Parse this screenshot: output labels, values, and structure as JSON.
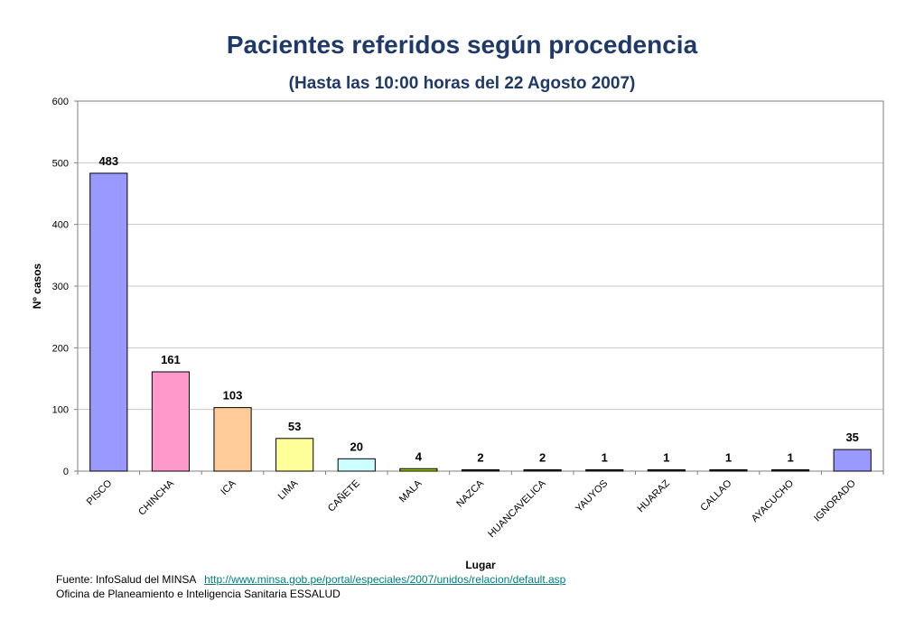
{
  "header": {
    "title": "Pacientes referidos según procedencia",
    "subtitle": "(Hasta las 10:00 horas del 22 Agosto 2007)"
  },
  "chart_data": {
    "type": "bar",
    "title": "Pacientes referidos según procedencia",
    "subtitle": "(Hasta las 10:00 horas del 22 Agosto 2007)",
    "xlabel": "Lugar",
    "ylabel": "Nº casos",
    "ylim": [
      0,
      600
    ],
    "yticks": [
      0,
      100,
      200,
      300,
      400,
      500,
      600
    ],
    "grid": true,
    "legend": false,
    "categories": [
      "PISCO",
      "CHINCHA",
      "ICA",
      "LIMA",
      "CAÑETE",
      "MALA",
      "NAZCA",
      "HUANCAVELICA",
      "YAUYOS",
      "HUARAZ",
      "CALLAO",
      "AYACUCHO",
      "IGNORADO"
    ],
    "values": [
      483,
      161,
      103,
      53,
      20,
      4,
      2,
      2,
      1,
      1,
      1,
      1,
      35
    ],
    "colors": [
      "#9999ff",
      "#ff99cc",
      "#ffcc99",
      "#ffff99",
      "#ccffff",
      "#99cc00",
      "#333333",
      "#333333",
      "#333333",
      "#333333",
      "#333333",
      "#333333",
      "#9999ff"
    ],
    "data_labels": [
      "483",
      "161",
      "103",
      "53",
      "20",
      "4",
      "2",
      "2",
      "1",
      "1",
      "1",
      "1",
      "35"
    ]
  },
  "footer": {
    "source_label": "Fuente: InfoSalud del MINSA",
    "source_url": "http://www.minsa.gob.pe/portal/especiales/2007/unidos/relacion/default.asp",
    "office": "Oficina de Planeamiento e Inteligencia Sanitaria ESSALUD"
  }
}
